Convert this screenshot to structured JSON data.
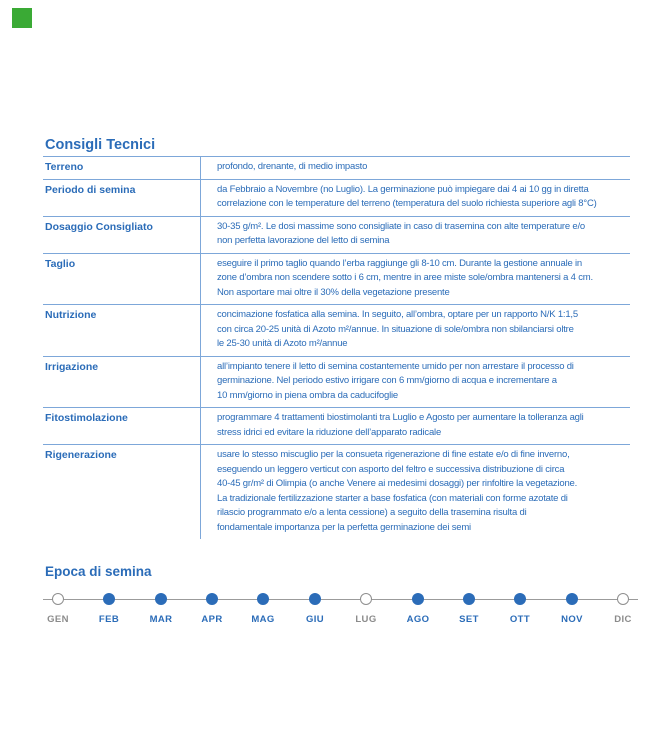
{
  "brand": {
    "mark_color": "#3aaa35"
  },
  "tips": {
    "title": "Consigli Tecnici",
    "rows": [
      {
        "label": "Terreno",
        "text": "profondo, drenante, di medio impasto"
      },
      {
        "label": "Periodo di semina",
        "text": "da Febbraio a Novembre (no Luglio). La germinazione può impiegare dai 4 ai 10 gg in diretta\ncorrelazione con le temperature del terreno (temperatura del suolo richiesta superiore agli 8°C)"
      },
      {
        "label": "Dosaggio Consigliato",
        "text": "30-35 g/m². Le dosi massime sono consigliate in caso di trasemina con alte temperature e/o\nnon perfetta lavorazione del letto di semina"
      },
      {
        "label": "Taglio",
        "text": "eseguire il primo taglio quando l’erba raggiunge gli 8-10 cm. Durante la gestione annuale in\nzone d’ombra non scendere sotto i 6 cm, mentre in aree miste sole/ombra mantenersi a 4 cm.\nNon asportare mai oltre il 30% della vegetazione presente"
      },
      {
        "label": "Nutrizione",
        "text": "concimazione fosfatica alla semina. In seguito, all’ombra, optare per un rapporto N/K 1:1,5\ncon circa 20-25 unità di Azoto m²/annue. In situazione di sole/ombra non sbilanciarsi oltre\nle 25-30 unità di Azoto m²/annue"
      },
      {
        "label": "Irrigazione",
        "text": "all’impianto tenere il letto di semina costantemente umido per non arrestare il processo di\ngerminazione. Nel periodo estivo irrigare con 6 mm/giorno di acqua e incrementare a\n10 mm/giorno in piena ombra da caducifoglie"
      },
      {
        "label": "Fitostimolazione",
        "text": "programmare 4 trattamenti biostimolanti tra Luglio e Agosto per aumentare la tolleranza agli\nstress idrici ed evitare la riduzione dell’apparato radicale"
      },
      {
        "label": "Rigenerazione",
        "text": "usare lo stesso miscuglio per la consueta rigenerazione di fine estate e/o di fine inverno,\neseguendo un leggero verticut con asporto del feltro e successiva distribuzione di circa\n40-45 gr/m² di Olimpia (o anche Venere ai medesimi dosaggi) per rinfoltire la vegetazione.\nLa tradizionale fertilizzazione starter a base fosfatica (con materiali con forme azotate di\nrilascio programmato e/o a lenta cessione) a seguito della trasemina risulta di\nfondamentale importanza per la perfetta germinazione dei semi"
      }
    ]
  },
  "season": {
    "title": "Epoca di semina",
    "months": [
      {
        "label": "GEN",
        "filled": false
      },
      {
        "label": "FEB",
        "filled": true
      },
      {
        "label": "MAR",
        "filled": true
      },
      {
        "label": "APR",
        "filled": true
      },
      {
        "label": "MAG",
        "filled": true
      },
      {
        "label": "GIU",
        "filled": true
      },
      {
        "label": "LUG",
        "filled": false
      },
      {
        "label": "AGO",
        "filled": true
      },
      {
        "label": "SET",
        "filled": true
      },
      {
        "label": "OTT",
        "filled": true
      },
      {
        "label": "NOV",
        "filled": true
      },
      {
        "label": "DIC",
        "filled": false
      }
    ]
  },
  "colors": {
    "accent_blue": "#2b6cb8",
    "rule_blue": "#7da7d9",
    "inactive_gray": "#8b8b8b",
    "brand_green": "#3aaa35"
  }
}
